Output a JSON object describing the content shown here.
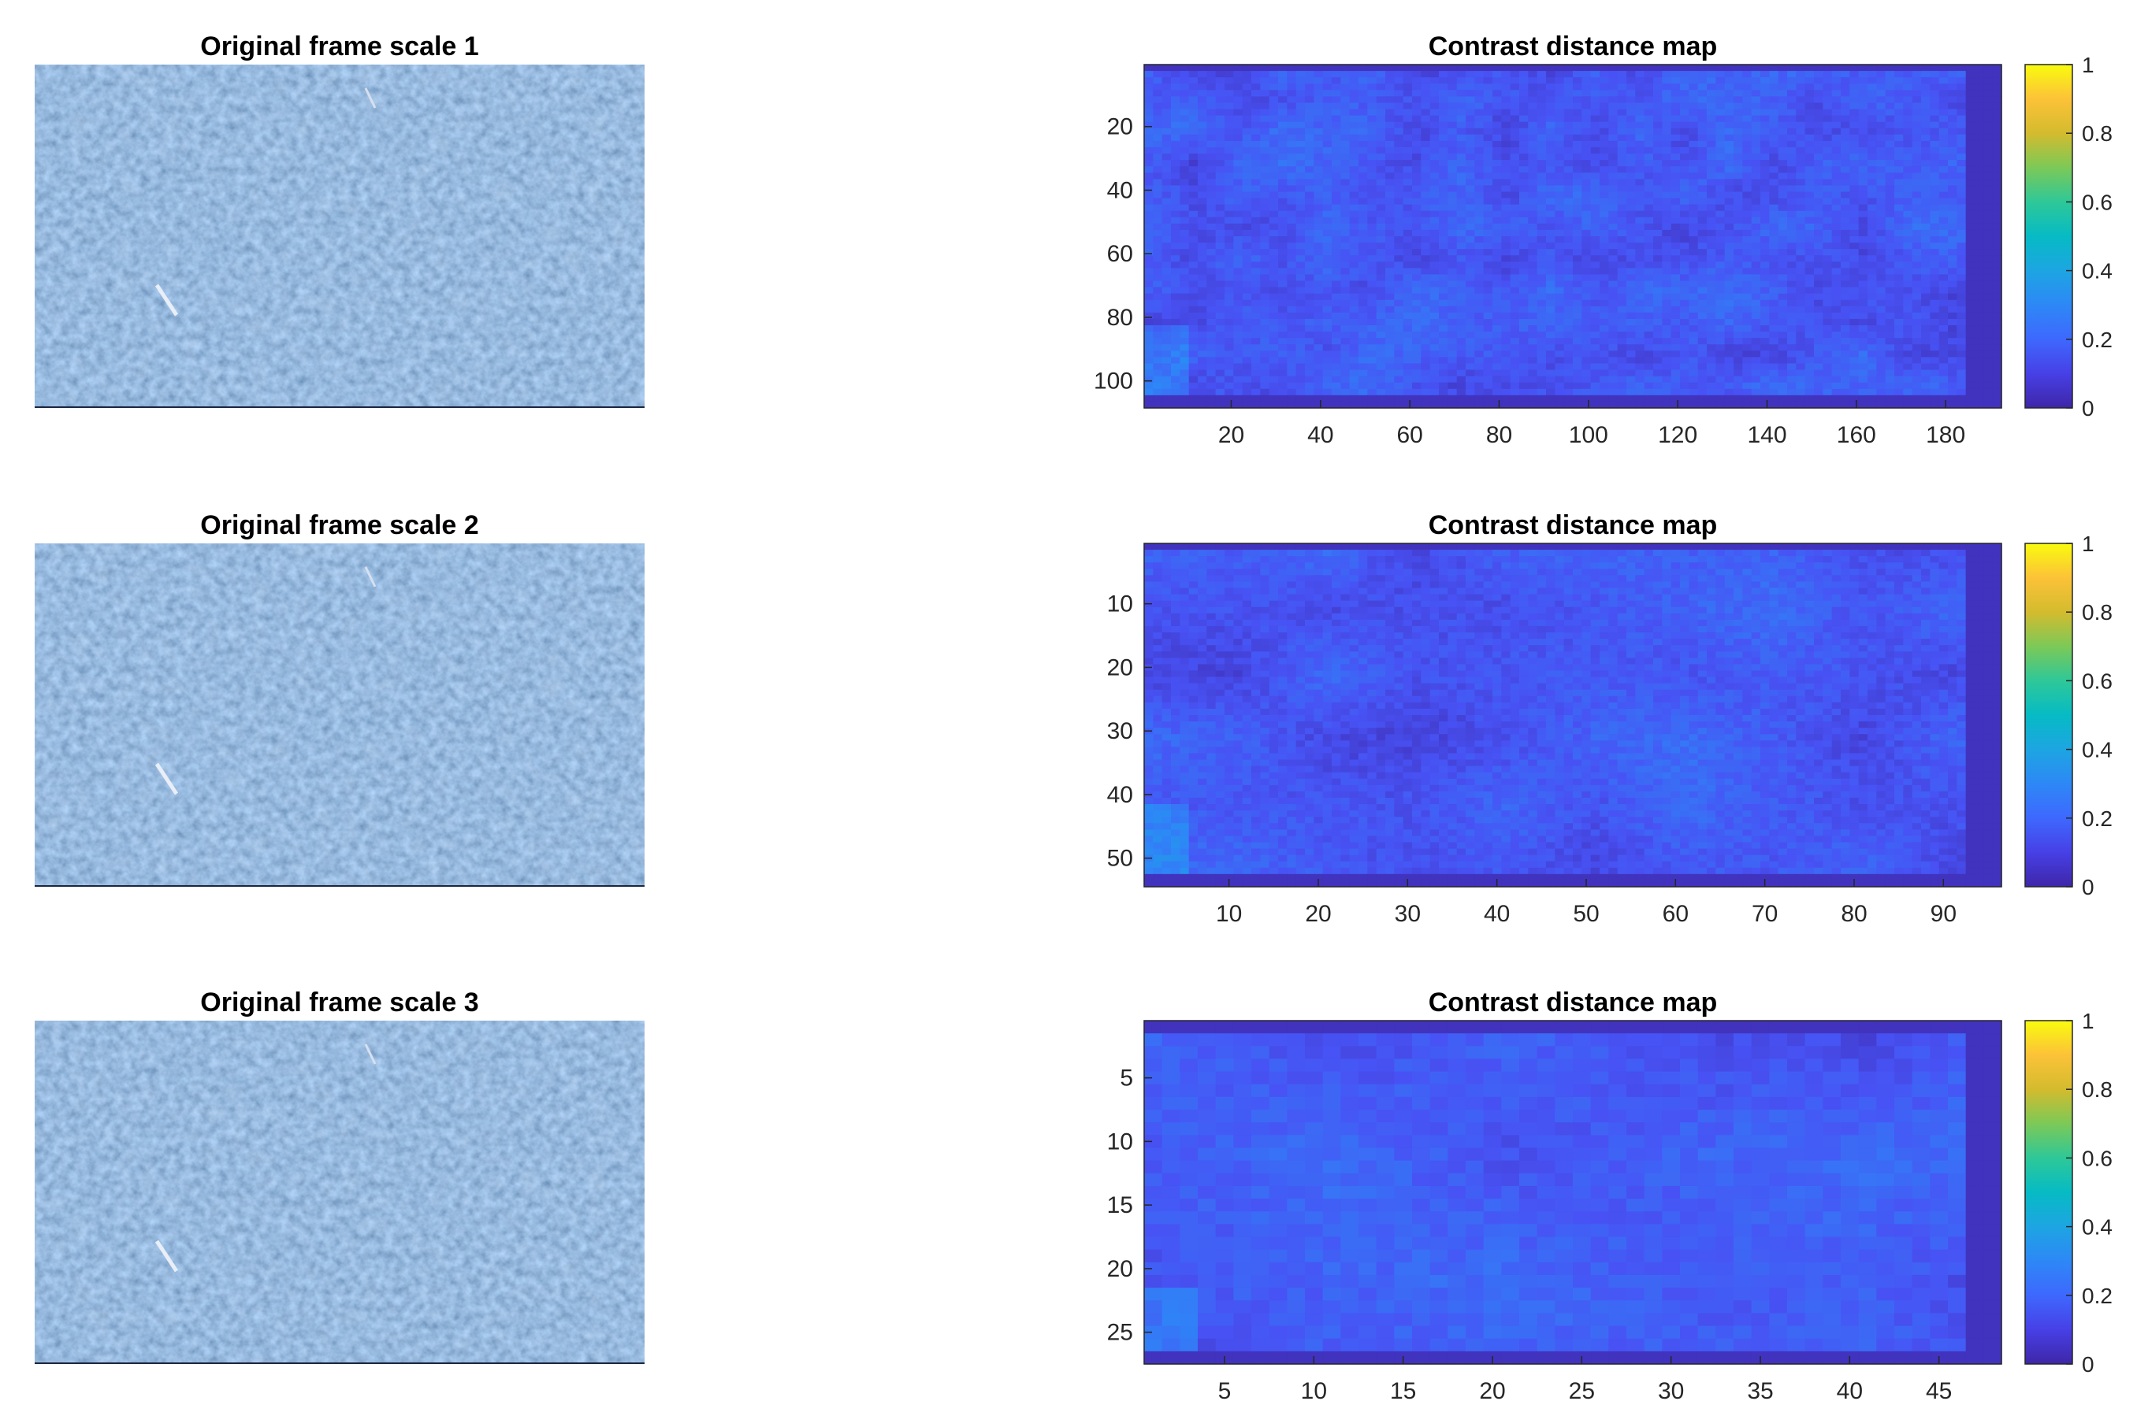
{
  "chart_data": [
    {
      "type": "image",
      "title": "Original frame scale 1",
      "axes_visible": false
    },
    {
      "type": "heatmap",
      "title": "Contrast distance map",
      "rows": 108,
      "cols": 192,
      "xticks": [
        20,
        40,
        60,
        80,
        100,
        120,
        140,
        160,
        180
      ],
      "yticks": [
        20,
        40,
        60,
        80,
        100
      ],
      "clim": [
        0,
        1
      ],
      "colormap": "parula",
      "colorbar_ticks": [
        0,
        0.2,
        0.4,
        0.6,
        0.8,
        1
      ],
      "colorbar_tick_labels": [
        "0",
        "0.2",
        "0.4",
        "0.6",
        "0.8",
        "1"
      ],
      "value_range_approx": [
        0.02,
        0.3
      ]
    },
    {
      "type": "image",
      "title": "Original frame scale 2",
      "axes_visible": false
    },
    {
      "type": "heatmap",
      "title": "Contrast distance map",
      "rows": 54,
      "cols": 96,
      "xticks": [
        10,
        20,
        30,
        40,
        50,
        60,
        70,
        80,
        90
      ],
      "yticks": [
        10,
        20,
        30,
        40,
        50
      ],
      "clim": [
        0,
        1
      ],
      "colormap": "parula",
      "colorbar_ticks": [
        0,
        0.2,
        0.4,
        0.6,
        0.8,
        1
      ],
      "colorbar_tick_labels": [
        "0",
        "0.2",
        "0.4",
        "0.6",
        "0.8",
        "1"
      ],
      "value_range_approx": [
        0.02,
        0.25
      ]
    },
    {
      "type": "image",
      "title": "Original frame scale 3",
      "axes_visible": false
    },
    {
      "type": "heatmap",
      "title": "Contrast distance map",
      "rows": 27,
      "cols": 48,
      "xticks": [
        5,
        10,
        15,
        20,
        25,
        30,
        35,
        40,
        45
      ],
      "yticks": [
        5,
        10,
        15,
        20,
        25
      ],
      "clim": [
        0,
        1
      ],
      "colormap": "parula",
      "colorbar_ticks": [
        0,
        0.2,
        0.4,
        0.6,
        0.8,
        1
      ],
      "colorbar_tick_labels": [
        "0",
        "0.2",
        "0.4",
        "0.6",
        "0.8",
        "1"
      ],
      "value_range_approx": [
        0.02,
        0.18
      ]
    }
  ]
}
